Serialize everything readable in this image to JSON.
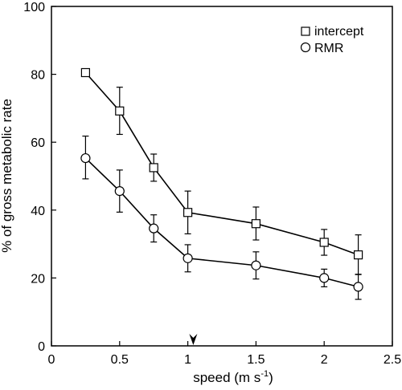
{
  "chart_data": {
    "type": "line",
    "title": "",
    "xlabel": "speed (m s",
    "xlabel_superscript": "-1",
    "xlabel_close": ")",
    "ylabel": "% of gross metabolic rate",
    "xlim": [
      0,
      2.5
    ],
    "ylim": [
      0,
      100
    ],
    "x_ticks": [
      0,
      0.5,
      1,
      1.5,
      2,
      2.5
    ],
    "x_tick_labels": [
      "0",
      "0.5",
      "1",
      "1.5",
      "2",
      "2.5"
    ],
    "y_ticks": [
      0,
      20,
      40,
      60,
      80,
      100
    ],
    "y_tick_labels": [
      "0",
      "20",
      "40",
      "60",
      "80",
      "100"
    ],
    "grid": false,
    "legend_position": "top-right",
    "x": [
      0.25,
      0.5,
      0.75,
      1.0,
      1.5,
      2.0,
      2.25
    ],
    "series": [
      {
        "name": "intercept",
        "marker": "square",
        "values": [
          80.5,
          69.2,
          52.5,
          39.3,
          36.0,
          30.5,
          26.8
        ],
        "err_high": [
          81.3,
          76.2,
          56.5,
          45.6,
          40.9,
          34.3,
          32.7
        ],
        "err_low": [
          80.0,
          62.3,
          48.5,
          33.0,
          31.2,
          26.7,
          21.0
        ]
      },
      {
        "name": "RMR",
        "marker": "circle",
        "values": [
          55.3,
          45.6,
          34.6,
          25.8,
          23.7,
          20.0,
          17.4
        ],
        "err_high": [
          61.8,
          51.8,
          38.6,
          29.8,
          27.7,
          22.6,
          21.1
        ],
        "err_low": [
          49.2,
          39.4,
          30.6,
          21.8,
          19.7,
          17.4,
          13.7
        ]
      }
    ],
    "annotation_arrow_x": 1.04
  }
}
